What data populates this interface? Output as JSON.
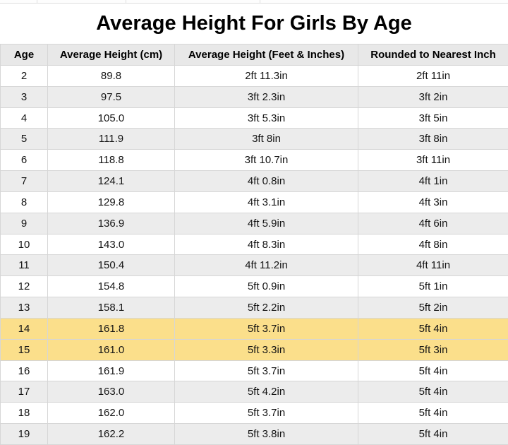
{
  "title": "Average Height For Girls By Age",
  "table": {
    "columns": [
      "Age",
      "Average Height (cm)",
      "Average Height (Feet & Inches)",
      "Rounded to Nearest Inch"
    ],
    "rows": [
      {
        "age": "2",
        "cm": "89.8",
        "ftin": "2ft 11.3in",
        "rounded": "2ft 11in",
        "highlight": false
      },
      {
        "age": "3",
        "cm": "97.5",
        "ftin": "3ft 2.3in",
        "rounded": "3ft 2in",
        "highlight": false
      },
      {
        "age": "4",
        "cm": "105.0",
        "ftin": "3ft 5.3in",
        "rounded": "3ft 5in",
        "highlight": false
      },
      {
        "age": "5",
        "cm": "111.9",
        "ftin": "3ft 8in",
        "rounded": "3ft 8in",
        "highlight": false
      },
      {
        "age": "6",
        "cm": "118.8",
        "ftin": "3ft 10.7in",
        "rounded": "3ft 11in",
        "highlight": false
      },
      {
        "age": "7",
        "cm": "124.1",
        "ftin": "4ft 0.8in",
        "rounded": "4ft 1in",
        "highlight": false
      },
      {
        "age": "8",
        "cm": "129.8",
        "ftin": "4ft 3.1in",
        "rounded": "4ft 3in",
        "highlight": false
      },
      {
        "age": "9",
        "cm": "136.9",
        "ftin": "4ft 5.9in",
        "rounded": "4ft 6in",
        "highlight": false
      },
      {
        "age": "10",
        "cm": "143.0",
        "ftin": "4ft 8.3in",
        "rounded": "4ft 8in",
        "highlight": false
      },
      {
        "age": "11",
        "cm": "150.4",
        "ftin": "4ft 11.2in",
        "rounded": "4ft 11in",
        "highlight": false
      },
      {
        "age": "12",
        "cm": "154.8",
        "ftin": "5ft 0.9in",
        "rounded": "5ft 1in",
        "highlight": false
      },
      {
        "age": "13",
        "cm": "158.1",
        "ftin": "5ft 2.2in",
        "rounded": "5ft 2in",
        "highlight": false
      },
      {
        "age": "14",
        "cm": "161.8",
        "ftin": "5ft 3.7in",
        "rounded": "5ft 4in",
        "highlight": true
      },
      {
        "age": "15",
        "cm": "161.0",
        "ftin": "5ft 3.3in",
        "rounded": "5ft 3in",
        "highlight": true
      },
      {
        "age": "16",
        "cm": "161.9",
        "ftin": "5ft 3.7in",
        "rounded": "5ft 4in",
        "highlight": false
      },
      {
        "age": "17",
        "cm": "163.0",
        "ftin": "5ft 4.2in",
        "rounded": "5ft 4in",
        "highlight": false
      },
      {
        "age": "18",
        "cm": "162.0",
        "ftin": "5ft 3.7in",
        "rounded": "5ft 4in",
        "highlight": false
      },
      {
        "age": "19",
        "cm": "162.2",
        "ftin": "5ft 3.8in",
        "rounded": "5ft 4in",
        "highlight": false
      }
    ]
  },
  "colors": {
    "highlight": "#fbdf8b",
    "row_alt": "#ececec",
    "header_bg": "#e8e8e8",
    "border": "#d6d6d6"
  },
  "chart_data": {
    "type": "table",
    "title": "Average Height For Girls By Age",
    "columns": [
      "Age",
      "Average Height (cm)",
      "Average Height (Feet & Inches)",
      "Rounded to Nearest Inch"
    ],
    "rows": [
      [
        "2",
        "89.8",
        "2ft 11.3in",
        "2ft 11in"
      ],
      [
        "3",
        "97.5",
        "3ft 2.3in",
        "3ft 2in"
      ],
      [
        "4",
        "105.0",
        "3ft 5.3in",
        "3ft 5in"
      ],
      [
        "5",
        "111.9",
        "3ft 8in",
        "3ft 8in"
      ],
      [
        "6",
        "118.8",
        "3ft 10.7in",
        "3ft 11in"
      ],
      [
        "7",
        "124.1",
        "4ft 0.8in",
        "4ft 1in"
      ],
      [
        "8",
        "129.8",
        "4ft 3.1in",
        "4ft 3in"
      ],
      [
        "9",
        "136.9",
        "4ft 5.9in",
        "4ft 6in"
      ],
      [
        "10",
        "143.0",
        "4ft 8.3in",
        "4ft 8in"
      ],
      [
        "11",
        "150.4",
        "4ft 11.2in",
        "4ft 11in"
      ],
      [
        "12",
        "154.8",
        "5ft 0.9in",
        "5ft 1in"
      ],
      [
        "13",
        "158.1",
        "5ft 2.2in",
        "5ft 2in"
      ],
      [
        "14",
        "161.8",
        "5ft 3.7in",
        "5ft 4in"
      ],
      [
        "15",
        "161.0",
        "5ft 3.3in",
        "5ft 3in"
      ],
      [
        "16",
        "161.9",
        "5ft 3.7in",
        "5ft 4in"
      ],
      [
        "17",
        "163.0",
        "5ft 4.2in",
        "5ft 4in"
      ],
      [
        "18",
        "162.0",
        "5ft 3.7in",
        "5ft 4in"
      ],
      [
        "19",
        "162.2",
        "5ft 3.8in",
        "5ft 4in"
      ]
    ],
    "highlighted_ages": [
      "14",
      "15"
    ],
    "layout": {
      "row_striping": "white / light-gray alternating",
      "legend_position": "none",
      "grid": true
    }
  }
}
